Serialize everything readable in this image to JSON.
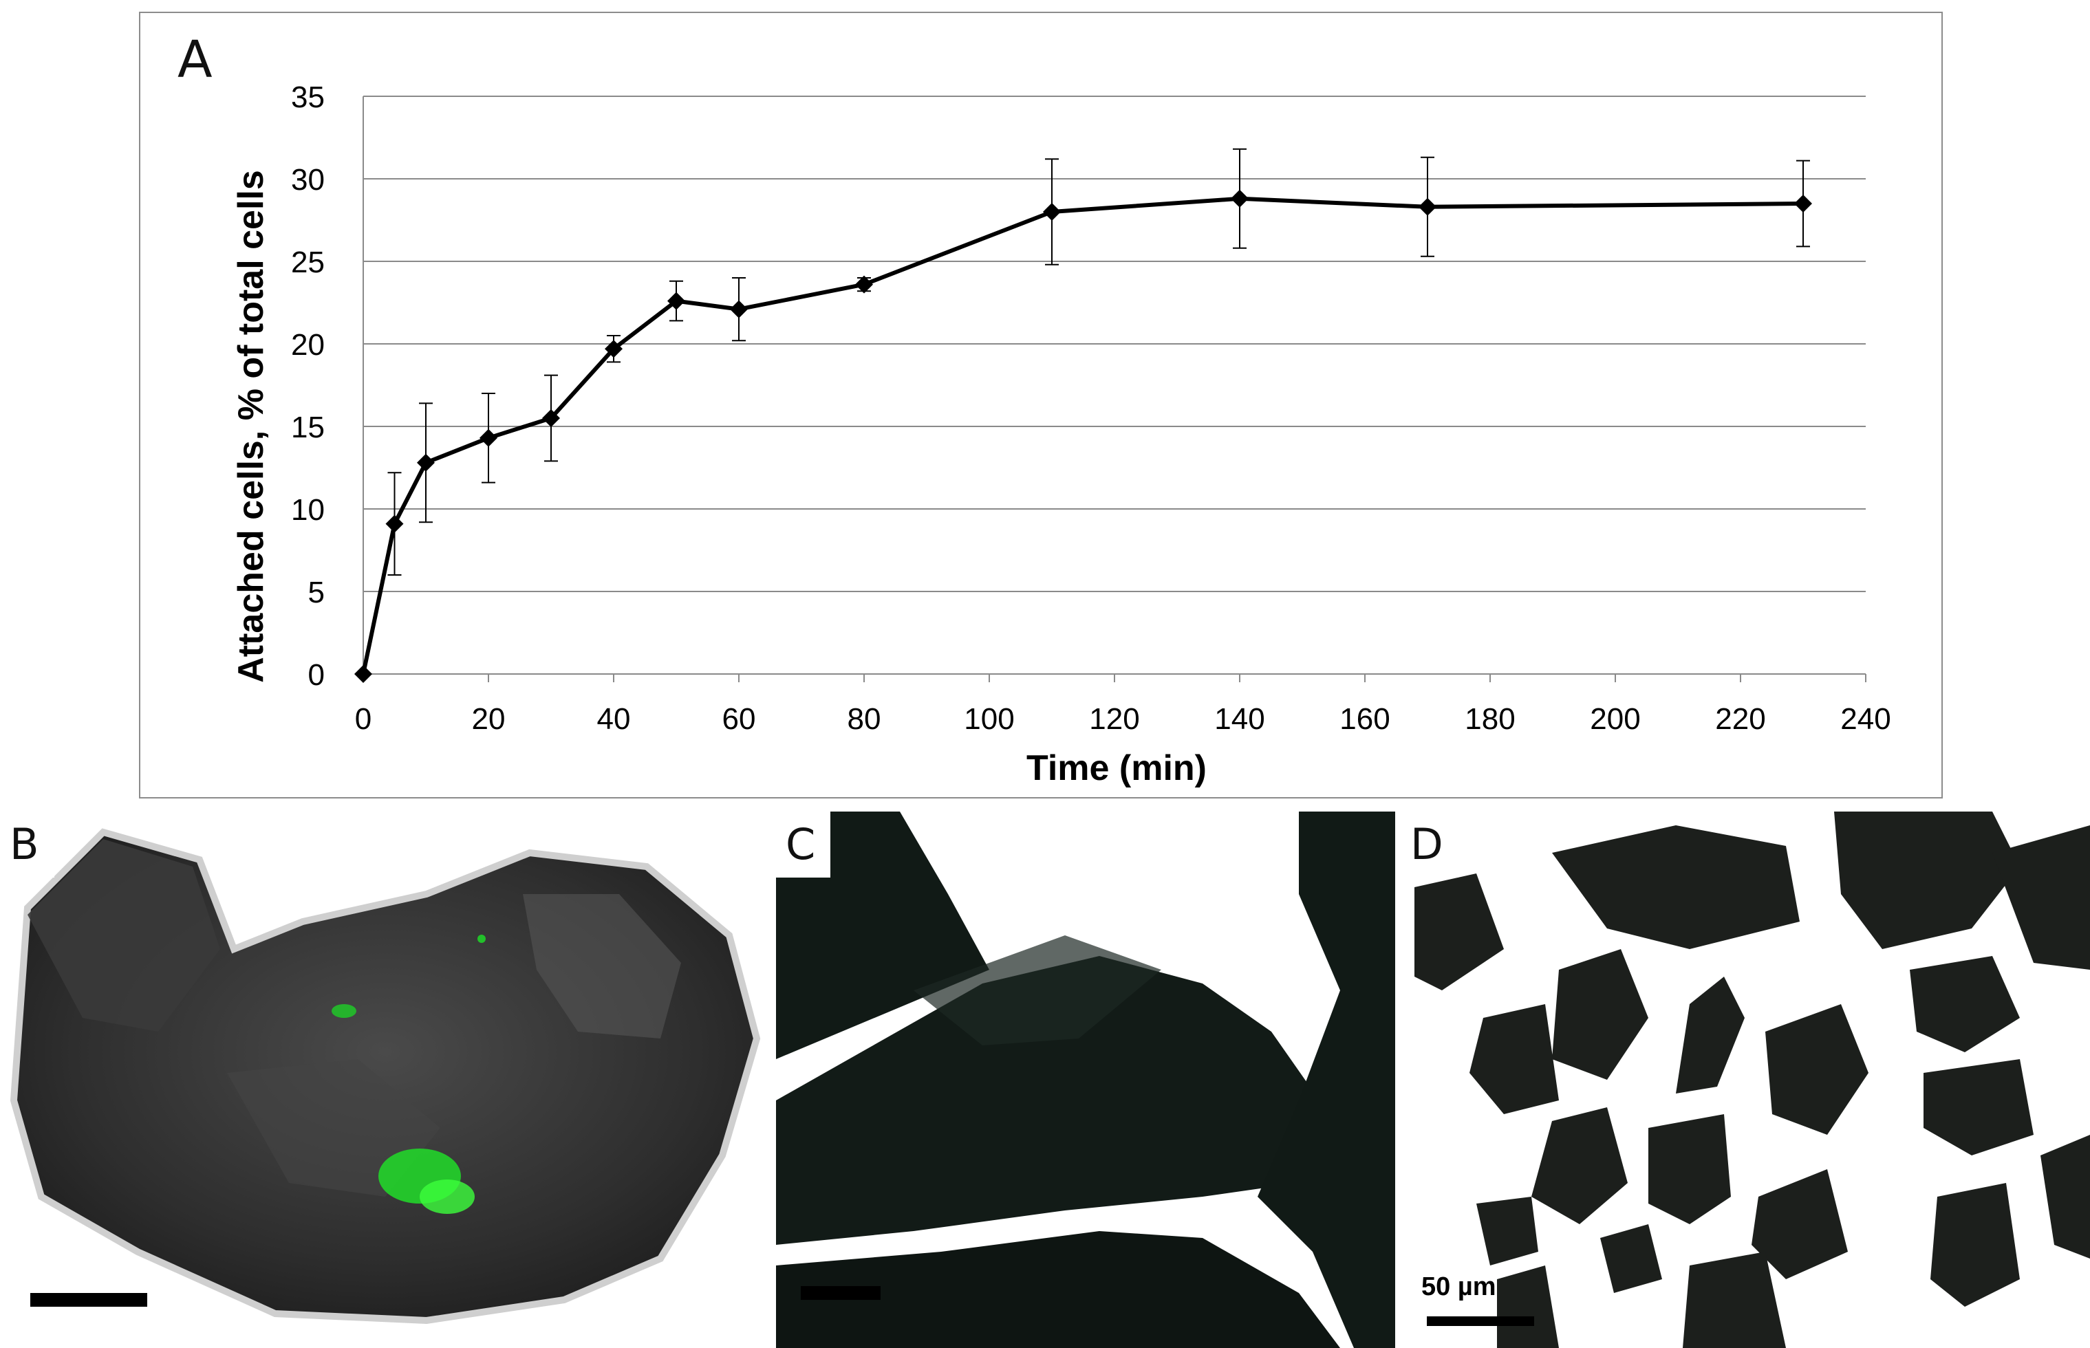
{
  "chart_data": {
    "type": "line",
    "panel_label": "A",
    "xlabel": "Time (min)",
    "ylabel": "Attached cells, % of total cells",
    "xlim": [
      0,
      240
    ],
    "ylim": [
      0,
      35
    ],
    "xticks": [
      0,
      20,
      40,
      60,
      80,
      100,
      120,
      140,
      160,
      180,
      200,
      220,
      240
    ],
    "yticks": [
      0,
      5,
      10,
      15,
      20,
      25,
      30,
      35
    ],
    "grid": "horizontal",
    "legend": "none",
    "series": [
      {
        "color": "#000000",
        "marker": "diamond",
        "x": [
          0,
          5,
          10,
          20,
          30,
          40,
          50,
          60,
          80,
          110,
          140,
          170,
          230
        ],
        "y": [
          0,
          9.1,
          12.8,
          14.3,
          15.5,
          19.7,
          22.6,
          22.1,
          23.6,
          28.0,
          28.8,
          28.3,
          28.5
        ],
        "error": [
          0,
          3.1,
          3.6,
          2.7,
          2.6,
          0.8,
          1.2,
          1.9,
          0.4,
          3.2,
          3.0,
          3.0,
          2.6
        ]
      }
    ]
  },
  "panels": {
    "b": {
      "label": "B"
    },
    "c": {
      "label": "C"
    },
    "d": {
      "label": "D",
      "scale_label": "50 µm"
    }
  }
}
